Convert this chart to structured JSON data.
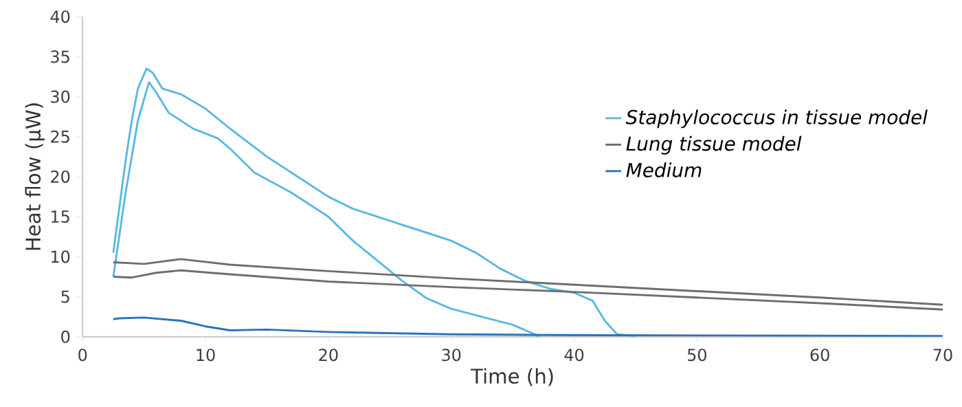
{
  "chart_data": {
    "type": "line",
    "xlabel": "Time (h)",
    "ylabel": "Heat flow (µW)",
    "xlim": [
      0,
      70
    ],
    "xticks": [
      0,
      10,
      20,
      30,
      40,
      50,
      60,
      70
    ],
    "ylim": [
      0,
      40
    ],
    "yticks": [
      0,
      5,
      10,
      15,
      20,
      25,
      30,
      35,
      40
    ],
    "grid": false,
    "legend": "right",
    "marker": "none",
    "line_style": "solid",
    "series": [
      {
        "name": "*Staphylococcus in tissue model*",
        "color": "#5bb8e0",
        "x": [
          2.5,
          3.5,
          4,
          4.5,
          5.2,
          5.7,
          6.5,
          8,
          10,
          12,
          15,
          18,
          20,
          22,
          25,
          28,
          30,
          32,
          34,
          36,
          38,
          40,
          41.5,
          42.5,
          43.5,
          45
        ],
        "values": [
          10.5,
          22,
          27,
          31,
          33.5,
          33,
          31,
          30.3,
          28.5,
          26,
          22.5,
          19.5,
          17.5,
          16,
          14.5,
          13,
          12,
          10.5,
          8.5,
          7,
          6,
          5.5,
          4.5,
          2,
          0.3,
          0.1
        ]
      },
      {
        "color": "#5bb8e0",
        "x": [
          2.5,
          3.5,
          4.5,
          5.4,
          6,
          7,
          9,
          11,
          12,
          14,
          17,
          20,
          22,
          24,
          26,
          28,
          30,
          33,
          35,
          36.5,
          37.2
        ],
        "values": [
          7.5,
          18,
          27,
          31.8,
          30.5,
          28,
          26,
          24.8,
          23.5,
          20.5,
          18,
          15,
          12,
          9.5,
          7,
          4.8,
          3.5,
          2.3,
          1.5,
          0.5,
          0
        ]
      },
      {
        "name": "*Lung tissue model*",
        "color": "#6d6e71",
        "x": [
          2.5,
          5,
          8,
          12,
          20,
          30,
          40,
          50,
          60,
          70
        ],
        "values": [
          9.3,
          9.1,
          9.7,
          9,
          8.2,
          7.3,
          6.5,
          5.7,
          4.9,
          4.0
        ]
      },
      {
        "color": "#6d6e71",
        "x": [
          2.5,
          4,
          6,
          8,
          12,
          20,
          30,
          40,
          50,
          60,
          70
        ],
        "values": [
          7.5,
          7.4,
          8,
          8.3,
          7.8,
          6.9,
          6.2,
          5.6,
          4.9,
          4.2,
          3.4
        ]
      },
      {
        "name": "*Medium*",
        "color": "#2a73c0",
        "x": [
          2.5,
          3,
          5,
          8,
          10,
          12,
          15,
          20,
          30,
          40,
          70
        ],
        "values": [
          2.2,
          2.3,
          2.4,
          2,
          1.3,
          0.8,
          0.9,
          0.6,
          0.3,
          0.2,
          0.1
        ]
      }
    ]
  }
}
